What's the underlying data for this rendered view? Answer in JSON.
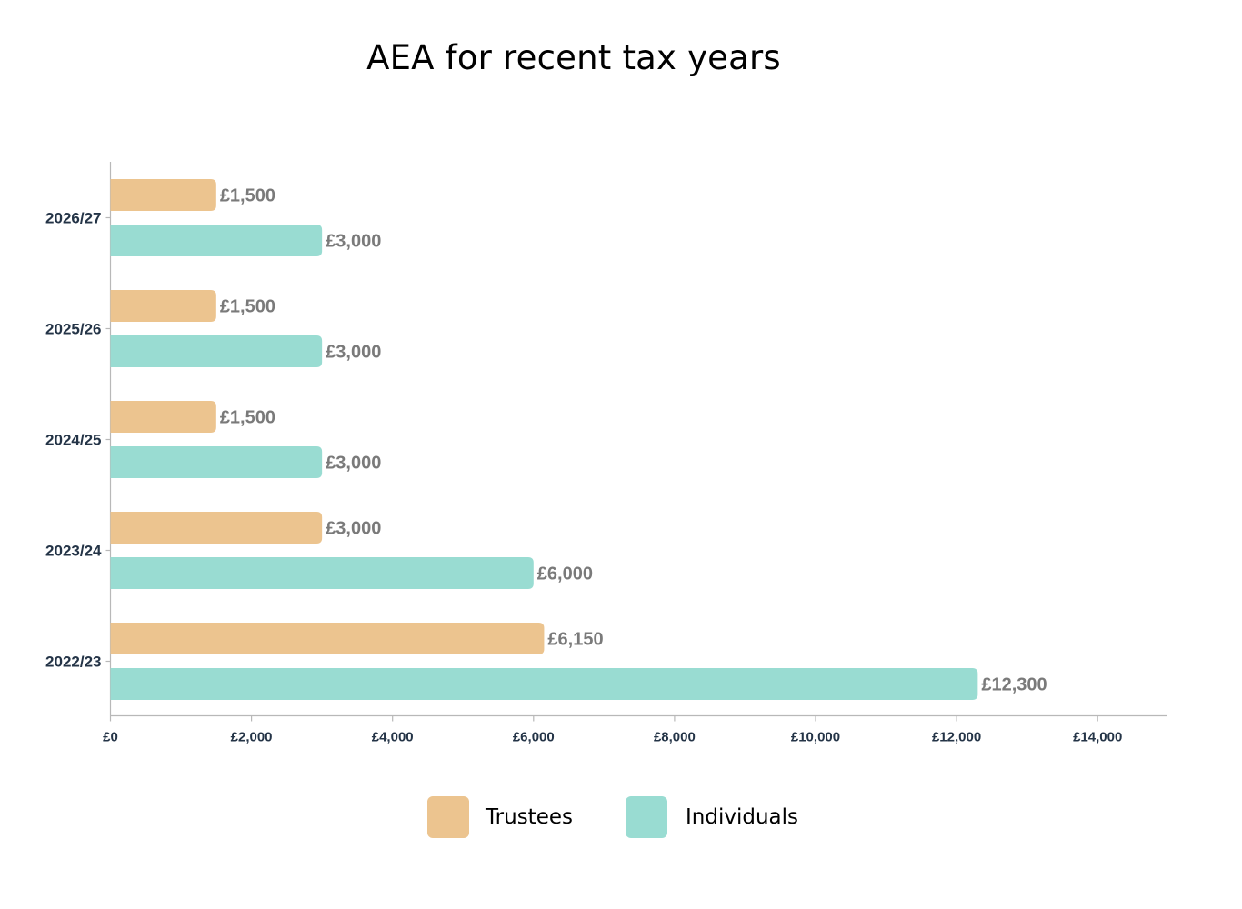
{
  "chart_data": {
    "type": "bar",
    "orientation": "horizontal",
    "title": "AEA for recent tax years",
    "categories": [
      "2026/27",
      "2025/26",
      "2024/25",
      "2023/24",
      "2022/23"
    ],
    "series": [
      {
        "name": "Trustees",
        "color": "#ecc48f",
        "values": [
          1500,
          1500,
          1500,
          3000,
          6150
        ],
        "labels": [
          "£1,500",
          "£1,500",
          "£1,500",
          "£3,000",
          "£6,150"
        ]
      },
      {
        "name": "Individuals",
        "color": "#99dcd2",
        "values": [
          3000,
          3000,
          3000,
          6000,
          12300
        ],
        "labels": [
          "£3,000",
          "£3,000",
          "£3,000",
          "£6,000",
          "£12,300"
        ]
      }
    ],
    "xlim": [
      0,
      15000
    ],
    "x_ticks": [
      0,
      2000,
      4000,
      6000,
      8000,
      10000,
      12000,
      14000
    ],
    "x_tick_labels": [
      "£0",
      "£2,000",
      "£4,000",
      "£6,000",
      "£8,000",
      "£10,000",
      "£12,000",
      "£14,000"
    ],
    "grid": false,
    "legend_position": "bottom"
  }
}
